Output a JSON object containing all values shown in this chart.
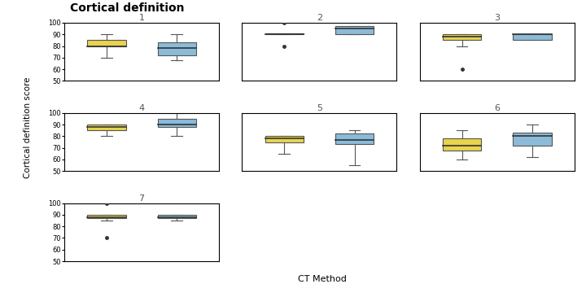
{
  "title": "Cortical definition",
  "ylabel": "Cortical definition score",
  "xlabel": "CT Method",
  "readers": [
    1,
    2,
    3,
    4,
    5,
    6,
    7
  ],
  "eid_color": "#E8D44D",
  "pcct_color": "#8BBBD9",
  "ylim": [
    50,
    100
  ],
  "yticks": [
    50,
    60,
    70,
    80,
    90,
    100
  ],
  "boxes": {
    "1": {
      "eid": {
        "q1": 80,
        "median": 80,
        "q3": 85,
        "whislo": 70,
        "whishi": 90,
        "fliers": []
      },
      "pcct": {
        "q1": 72,
        "median": 78,
        "q3": 83,
        "whislo": 68,
        "whishi": 90,
        "fliers": []
      }
    },
    "2": {
      "eid": {
        "q1": 90,
        "median": 90,
        "q3": 91,
        "whislo": 90,
        "whishi": 91,
        "fliers": [
          80,
          100
        ]
      },
      "pcct": {
        "q1": 90,
        "median": 95,
        "q3": 97,
        "whislo": 90,
        "whishi": 97,
        "fliers": []
      }
    },
    "3": {
      "eid": {
        "q1": 85,
        "median": 88,
        "q3": 90,
        "whislo": 80,
        "whishi": 90,
        "fliers": [
          60
        ]
      },
      "pcct": {
        "q1": 85,
        "median": 90,
        "q3": 90,
        "whislo": 85,
        "whishi": 90,
        "fliers": []
      }
    },
    "4": {
      "eid": {
        "q1": 85,
        "median": 88,
        "q3": 90,
        "whislo": 80,
        "whishi": 90,
        "fliers": []
      },
      "pcct": {
        "q1": 88,
        "median": 90,
        "q3": 95,
        "whislo": 80,
        "whishi": 100,
        "fliers": []
      }
    },
    "5": {
      "eid": {
        "q1": 75,
        "median": 78,
        "q3": 80,
        "whislo": 65,
        "whishi": 80,
        "fliers": []
      },
      "pcct": {
        "q1": 73,
        "median": 77,
        "q3": 82,
        "whislo": 55,
        "whishi": 85,
        "fliers": []
      }
    },
    "6": {
      "eid": {
        "q1": 68,
        "median": 72,
        "q3": 78,
        "whislo": 60,
        "whishi": 85,
        "fliers": []
      },
      "pcct": {
        "q1": 72,
        "median": 80,
        "q3": 83,
        "whislo": 62,
        "whishi": 90,
        "fliers": []
      }
    },
    "7": {
      "eid": {
        "q1": 87,
        "median": 88,
        "q3": 90,
        "whislo": 85,
        "whishi": 90,
        "fliers": [
          70,
          100
        ]
      },
      "pcct": {
        "q1": 87,
        "median": 88,
        "q3": 90,
        "whislo": 85,
        "whishi": 90,
        "fliers": []
      }
    }
  }
}
